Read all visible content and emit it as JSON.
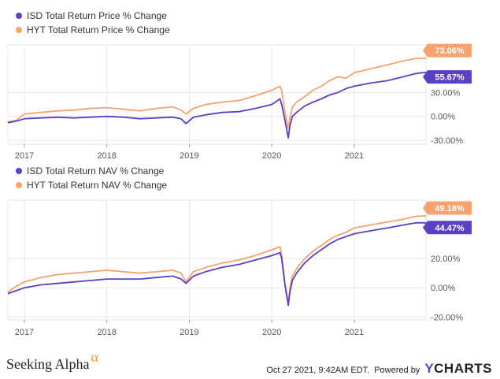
{
  "colors": {
    "isd": "#5b3fc4",
    "hyt": "#f5a26f",
    "grid": "#e6e6e6",
    "axis_text": "#555555"
  },
  "chart_data": [
    {
      "type": "line",
      "legend": [
        "ISD Total Return Price % Change",
        "HYT Total Return Price % Change"
      ],
      "x_ticks": [
        "2017",
        "2018",
        "2019",
        "2020",
        "2021"
      ],
      "y_ticks": [
        "30.00%",
        "0.00%",
        "-30.00%"
      ],
      "y_tick_values": [
        30,
        0,
        -30
      ],
      "ylim": [
        -35,
        90
      ],
      "xlim": [
        2016.8,
        2021.87
      ],
      "series": [
        {
          "name": "ISD Total Return Price % Change",
          "color": "#5b3fc4",
          "end_label": "55.67%",
          "x": [
            2016.8,
            2016.9,
            2017.0,
            2017.2,
            2017.4,
            2017.6,
            2017.8,
            2018.0,
            2018.2,
            2018.4,
            2018.6,
            2018.8,
            2018.9,
            2018.96,
            2019.05,
            2019.2,
            2019.4,
            2019.6,
            2019.8,
            2020.0,
            2020.1,
            2020.12,
            2020.16,
            2020.2,
            2020.22,
            2020.25,
            2020.3,
            2020.4,
            2020.5,
            2020.6,
            2020.7,
            2020.8,
            2020.9,
            2021.0,
            2021.2,
            2021.4,
            2021.6,
            2021.75,
            2021.87
          ],
          "y": [
            -8,
            -6,
            -3,
            -2,
            -1,
            -2,
            -1,
            0,
            -1,
            -3,
            -2,
            -1,
            -3,
            -9,
            -1,
            2,
            5,
            6,
            10,
            15,
            22,
            15,
            -5,
            -27,
            -12,
            0,
            5,
            13,
            18,
            22,
            27,
            30,
            35,
            38,
            42,
            45,
            50,
            54,
            55.67
          ]
        },
        {
          "name": "HYT Total Return Price % Change",
          "color": "#f5a26f",
          "end_label": "73.06%",
          "x": [
            2016.8,
            2016.9,
            2017.0,
            2017.2,
            2017.4,
            2017.6,
            2017.8,
            2018.0,
            2018.2,
            2018.4,
            2018.6,
            2018.8,
            2018.9,
            2018.96,
            2019.05,
            2019.2,
            2019.4,
            2019.6,
            2019.8,
            2020.0,
            2020.1,
            2020.12,
            2020.16,
            2020.2,
            2020.22,
            2020.25,
            2020.3,
            2020.4,
            2020.5,
            2020.6,
            2020.7,
            2020.8,
            2020.9,
            2021.0,
            2021.2,
            2021.4,
            2021.6,
            2021.75,
            2021.87
          ],
          "y": [
            -7,
            -5,
            3,
            5,
            7,
            8,
            10,
            11,
            9,
            7,
            10,
            12,
            8,
            3,
            10,
            15,
            18,
            20,
            26,
            33,
            38,
            33,
            5,
            -15,
            -2,
            12,
            18,
            25,
            33,
            38,
            45,
            50,
            48,
            55,
            60,
            65,
            70,
            73,
            73.06
          ]
        }
      ]
    },
    {
      "type": "line",
      "legend": [
        "ISD Total Return NAV % Change",
        "HYT Total Return NAV % Change"
      ],
      "x_ticks": [
        "2017",
        "2018",
        "2019",
        "2020",
        "2021"
      ],
      "y_ticks": [
        "20.00%",
        "0.00%",
        "-20.00%"
      ],
      "y_tick_values": [
        20,
        0,
        -20
      ],
      "ylim": [
        -22,
        60
      ],
      "xlim": [
        2016.8,
        2021.87
      ],
      "series": [
        {
          "name": "ISD Total Return NAV % Change",
          "color": "#5b3fc4",
          "end_label": "44.47%",
          "x": [
            2016.8,
            2016.9,
            2017.0,
            2017.2,
            2017.4,
            2017.6,
            2017.8,
            2018.0,
            2018.2,
            2018.4,
            2018.6,
            2018.8,
            2018.9,
            2018.96,
            2019.05,
            2019.2,
            2019.4,
            2019.6,
            2019.8,
            2020.0,
            2020.1,
            2020.12,
            2020.16,
            2020.2,
            2020.22,
            2020.25,
            2020.3,
            2020.4,
            2020.5,
            2020.6,
            2020.7,
            2020.8,
            2020.9,
            2021.0,
            2021.2,
            2021.4,
            2021.6,
            2021.75,
            2021.87
          ],
          "y": [
            -4,
            -2,
            0,
            2,
            3,
            4,
            5,
            6,
            6,
            6,
            7,
            8,
            6,
            3,
            8,
            11,
            14,
            16,
            19,
            22,
            24,
            20,
            2,
            -12,
            -3,
            5,
            10,
            17,
            22,
            26,
            30,
            33,
            35,
            37,
            39,
            41,
            43,
            44.5,
            44.47
          ]
        },
        {
          "name": "HYT Total Return NAV % Change",
          "color": "#f5a26f",
          "end_label": "49.18%",
          "x": [
            2016.8,
            2016.9,
            2017.0,
            2017.2,
            2017.4,
            2017.6,
            2017.8,
            2018.0,
            2018.2,
            2018.4,
            2018.6,
            2018.8,
            2018.9,
            2018.96,
            2019.05,
            2019.2,
            2019.4,
            2019.6,
            2019.8,
            2020.0,
            2020.1,
            2020.12,
            2020.16,
            2020.2,
            2020.22,
            2020.25,
            2020.3,
            2020.4,
            2020.5,
            2020.6,
            2020.7,
            2020.8,
            2020.9,
            2021.0,
            2021.2,
            2021.4,
            2021.6,
            2021.75,
            2021.87
          ],
          "y": [
            -3,
            1,
            4,
            7,
            9,
            10,
            11,
            12,
            11,
            10,
            11,
            12,
            10,
            4,
            11,
            14,
            17,
            19,
            22,
            26,
            28,
            23,
            3,
            -10,
            0,
            8,
            13,
            20,
            25,
            29,
            33,
            36,
            38,
            41,
            43,
            45,
            47,
            49,
            49.18
          ]
        }
      ]
    }
  ],
  "footer": {
    "brand": "Seeking Alpha",
    "brand_mark": "α",
    "timestamp": "Oct 27 2021, 9:42AM EDT.",
    "powered_by": "Powered by",
    "ycharts_y": "Y",
    "ycharts_rest": "CHARTS"
  }
}
